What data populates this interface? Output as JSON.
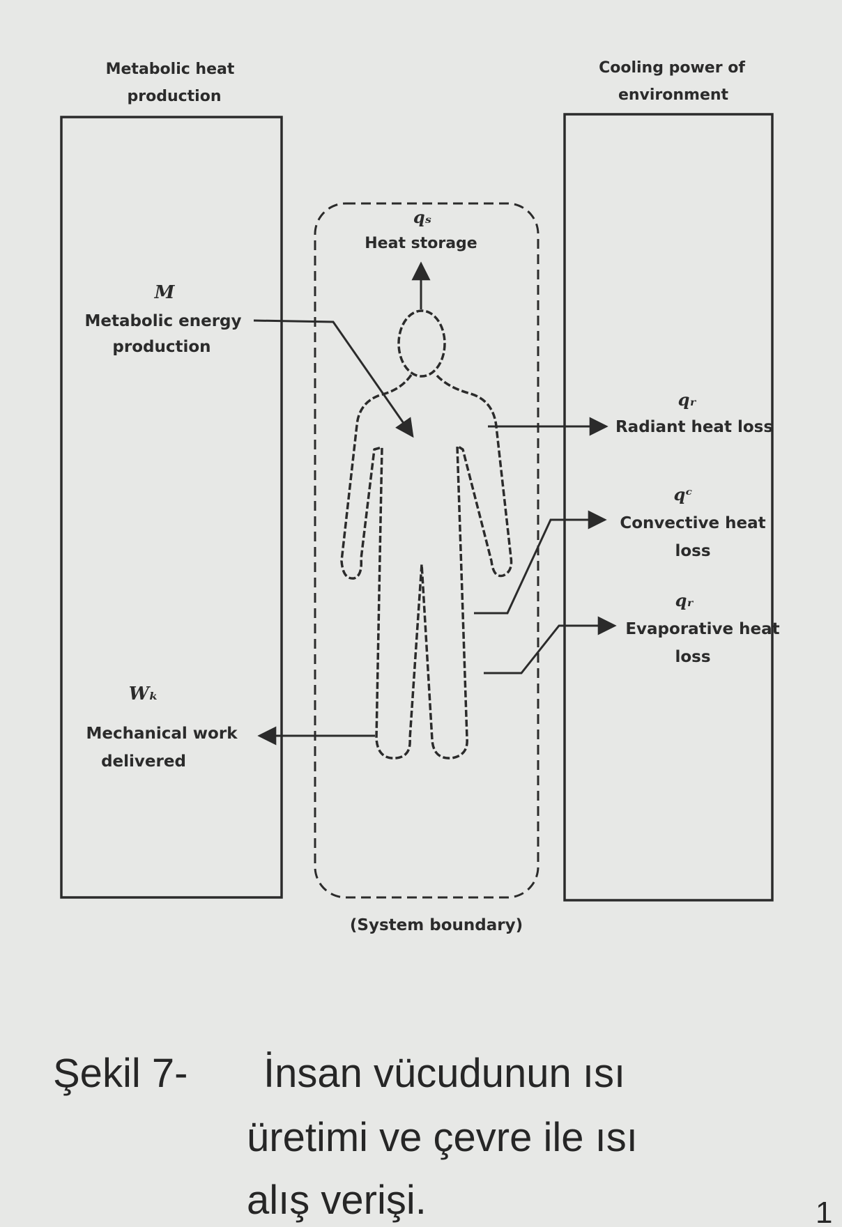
{
  "diagram": {
    "left_box": {
      "title_line1": "Metabolic heat",
      "title_line2": "production"
    },
    "right_box": {
      "title_line1": "Cooling power of",
      "title_line2": "environment"
    },
    "heat_storage": {
      "symbol": "qₛ",
      "label": "Heat storage"
    },
    "metabolic_energy": {
      "symbol": "M",
      "line1": "Metabolic energy",
      "line2": "production"
    },
    "mechanical_work": {
      "symbol": "Wₖ",
      "line1": "Mechanical work",
      "line2": "delivered"
    },
    "radiant": {
      "symbol": "qᵣ",
      "label": "Radiant heat loss"
    },
    "convective": {
      "symbol": "qᶜ",
      "line1": "Convective heat",
      "line2": "loss"
    },
    "evaporative": {
      "symbol": "qᵣ",
      "line1": "Evaporative heat",
      "line2": "loss"
    },
    "system_boundary": "(System boundary)"
  },
  "caption": {
    "prefix": "Şekil 7-",
    "line1": "İnsan vücudunun ısı",
    "line2": "üretimi ve çevre ile ısı",
    "line3": "alış verişi."
  },
  "page_number": "1"
}
